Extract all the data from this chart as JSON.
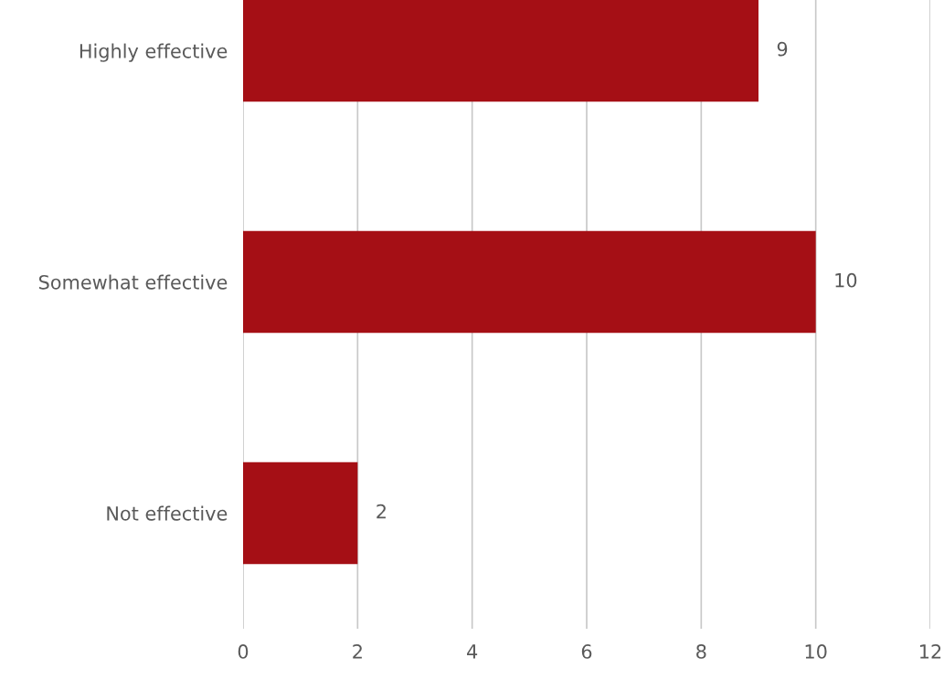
{
  "chart_data": {
    "type": "bar",
    "orientation": "horizontal",
    "categories": [
      "Highly effective",
      "Somewhat effective",
      "Not effective"
    ],
    "values": [
      9,
      10,
      2
    ],
    "color": "#a50f15",
    "xlim": [
      0,
      12
    ],
    "xticks": [
      0,
      2,
      4,
      6,
      8,
      10,
      12
    ],
    "grid": "x",
    "data_labels": true,
    "legend": false
  }
}
